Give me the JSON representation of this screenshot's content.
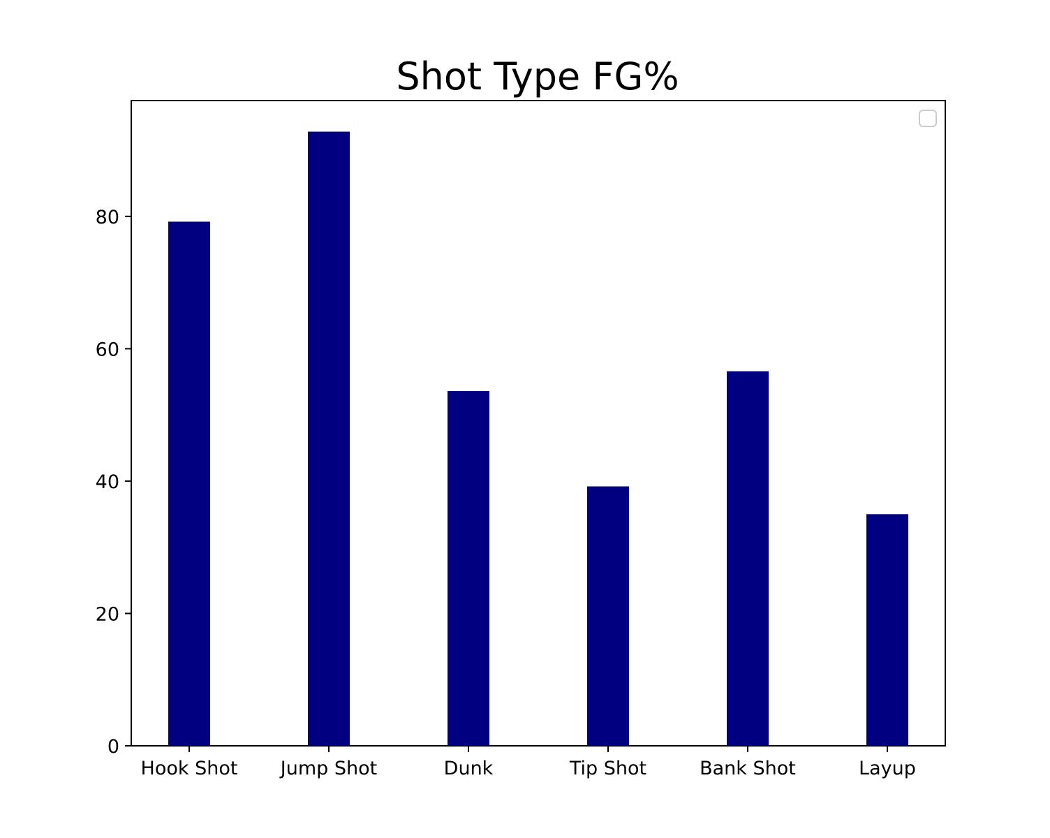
{
  "chart_data": {
    "type": "bar",
    "title": "Shot Type FG%",
    "xlabel": "",
    "ylabel": "",
    "categories": [
      "Hook Shot",
      "Jump Shot",
      "Dunk",
      "Tip Shot",
      "Bank Shot",
      "Layup"
    ],
    "values": [
      79.2,
      92.8,
      53.6,
      39.2,
      56.6,
      35.0
    ],
    "ylim": [
      0,
      97.5
    ],
    "yticks": [
      0,
      20,
      40,
      60,
      80
    ],
    "bar_color": "#000080",
    "grid": false,
    "legend": "top-right, empty"
  }
}
